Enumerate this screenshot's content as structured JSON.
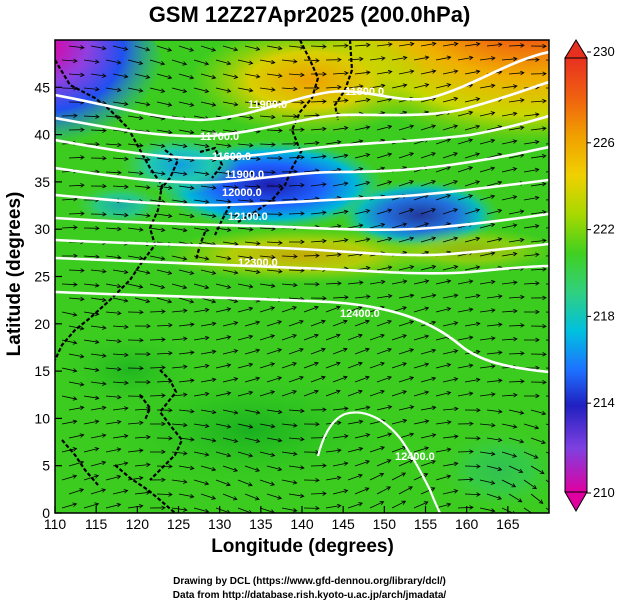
{
  "title": "GSM 12Z27Apr2025 (200.0hPa)",
  "x_axis": {
    "label": "Longitude (degrees)",
    "range": [
      110,
      170
    ],
    "ticks": [
      110,
      115,
      120,
      125,
      130,
      135,
      140,
      145,
      150,
      155,
      160,
      165
    ]
  },
  "y_axis": {
    "label": "Latitude  (degrees)",
    "range": [
      0,
      50
    ],
    "ticks": [
      0,
      5,
      10,
      15,
      20,
      25,
      30,
      35,
      40,
      45
    ]
  },
  "colorbar": {
    "ticks": [
      "230",
      "226",
      "222",
      "218",
      "214",
      "210"
    ],
    "colors": [
      "#e0007a",
      "#c040d0",
      "#2020c0",
      "#1e60ff",
      "#00b4e0",
      "#30d0a0",
      "#40d820",
      "#7ad000",
      "#c8d800",
      "#f0c000",
      "#f08000",
      "#e83020"
    ]
  },
  "contour_labels": [
    "11900.0",
    "11800.0",
    "11700.0",
    "11600.0",
    "11500.0",
    "12000.0",
    "12100.0",
    "12200.0",
    "12300.0",
    "12400.0"
  ],
  "credits": {
    "line1": "Drawing by DCL (https://www.gfd-dennou.org/library/dcl/)",
    "line2": "Data from http://database.rish.kyoto-u.ac.jp/arch/jmadata/"
  }
}
